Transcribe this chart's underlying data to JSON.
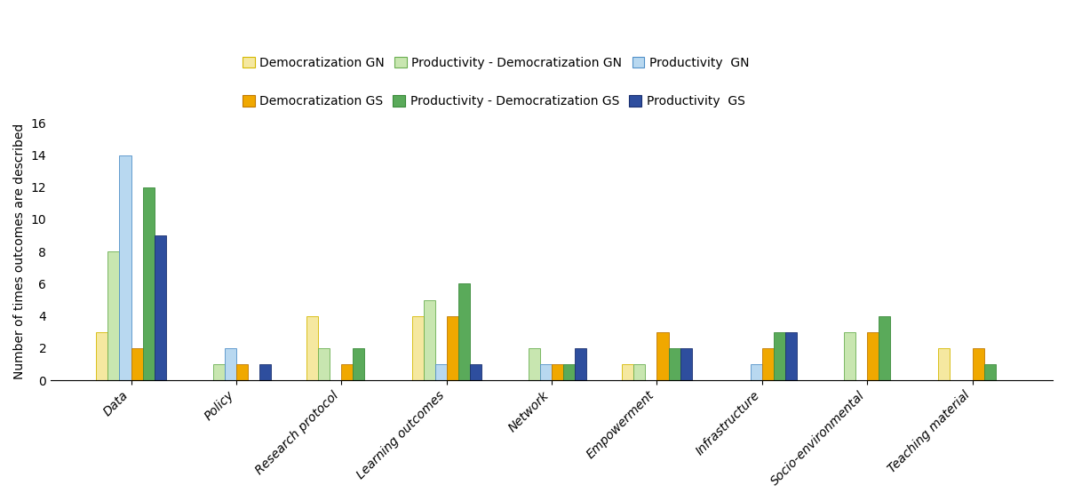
{
  "categories": [
    "Data",
    "Policy",
    "Research protocol",
    "Learning outcomes",
    "Network",
    "Empowerment",
    "Infrastructure",
    "Socio-environmental",
    "Teaching material"
  ],
  "series": [
    {
      "label": "Democratization GN",
      "color": "#f5e8a0",
      "edgecolor": "#d4b800",
      "values": [
        3,
        0,
        4,
        4,
        0,
        1,
        0,
        0,
        2
      ]
    },
    {
      "label": "Productivity - Democratization GN",
      "color": "#c8e6b0",
      "edgecolor": "#6aae50",
      "values": [
        8,
        1,
        2,
        5,
        2,
        1,
        0,
        3,
        0
      ]
    },
    {
      "label": "Productivity  GN",
      "color": "#b8d8f0",
      "edgecolor": "#5090c8",
      "values": [
        14,
        2,
        0,
        1,
        1,
        0,
        1,
        0,
        0
      ]
    },
    {
      "label": "Democratization GS",
      "color": "#f0a800",
      "edgecolor": "#c07800",
      "values": [
        2,
        1,
        1,
        4,
        1,
        3,
        2,
        3,
        2
      ]
    },
    {
      "label": "Productivity - Democratization GS",
      "color": "#5aaa5a",
      "edgecolor": "#3a8a3a",
      "values": [
        12,
        0,
        2,
        6,
        1,
        2,
        3,
        4,
        1
      ]
    },
    {
      "label": "Productivity  GS",
      "color": "#2e4e9e",
      "edgecolor": "#1a3070",
      "values": [
        9,
        1,
        0,
        1,
        2,
        2,
        3,
        0,
        0
      ]
    }
  ],
  "legend_row1": [
    "Democratization GN",
    "Productivity - Democratization GN",
    "Productivity  GN"
  ],
  "legend_row2": [
    "Democratization GS",
    "Productivity - Democratization GS",
    "Productivity  GS"
  ],
  "ylabel": "Number of times outcomes are described",
  "ylim": [
    0,
    16
  ],
  "yticks": [
    0,
    2,
    4,
    6,
    8,
    10,
    12,
    14,
    16
  ],
  "background_color": "#ffffff",
  "bar_width": 0.11
}
